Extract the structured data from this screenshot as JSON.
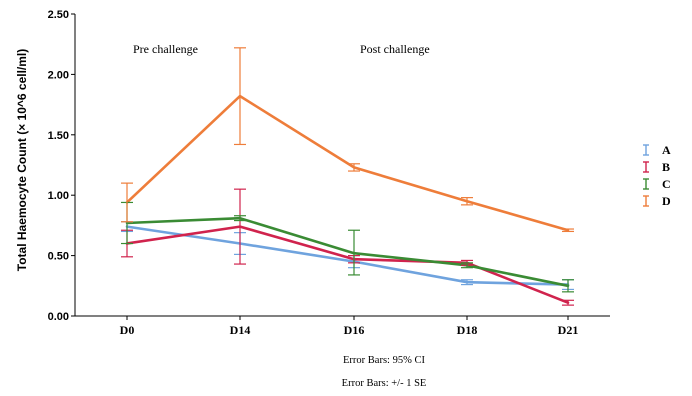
{
  "chart_data": {
    "type": "line",
    "ylabel": "Total Haemocyte Count (× 10^6 cell/ml)",
    "xlabel": "",
    "categories": [
      "D0",
      "D14",
      "D16",
      "D18",
      "D21"
    ],
    "ylim": [
      0,
      2.5
    ],
    "yticks": [
      "0.00",
      "0.50",
      "1.00",
      "1.50",
      "2.00",
      "2.50"
    ],
    "grid": false,
    "legend_position": "right",
    "annotations": [
      "Pre challenge",
      "Post challenge"
    ],
    "notes": [
      "Error Bars: 95% CI",
      "Error Bars: +/- 1 SE"
    ],
    "series": [
      {
        "name": "A",
        "color": "#6fa3de",
        "values": [
          0.74,
          0.6,
          0.45,
          0.28,
          0.26
        ],
        "err_low": [
          0.7,
          0.51,
          0.4,
          0.26,
          0.22
        ],
        "err_high": [
          0.78,
          0.69,
          0.5,
          0.3,
          0.3
        ]
      },
      {
        "name": "B",
        "color": "#d0234d",
        "values": [
          0.6,
          0.74,
          0.47,
          0.44,
          0.11
        ],
        "err_low": [
          0.49,
          0.43,
          0.44,
          0.42,
          0.09
        ],
        "err_high": [
          0.71,
          1.05,
          0.5,
          0.46,
          0.13
        ]
      },
      {
        "name": "C",
        "color": "#3a8b34",
        "values": [
          0.77,
          0.81,
          0.52,
          0.42,
          0.25
        ],
        "err_low": [
          0.6,
          0.79,
          0.34,
          0.4,
          0.2
        ],
        "err_high": [
          0.94,
          0.83,
          0.71,
          0.44,
          0.3
        ]
      },
      {
        "name": "D",
        "color": "#ee7d3a",
        "values": [
          0.94,
          1.82,
          1.23,
          0.95,
          0.71
        ],
        "err_low": [
          0.78,
          1.42,
          1.2,
          0.92,
          0.7
        ],
        "err_high": [
          1.1,
          2.22,
          1.26,
          0.98,
          0.72
        ]
      }
    ]
  }
}
